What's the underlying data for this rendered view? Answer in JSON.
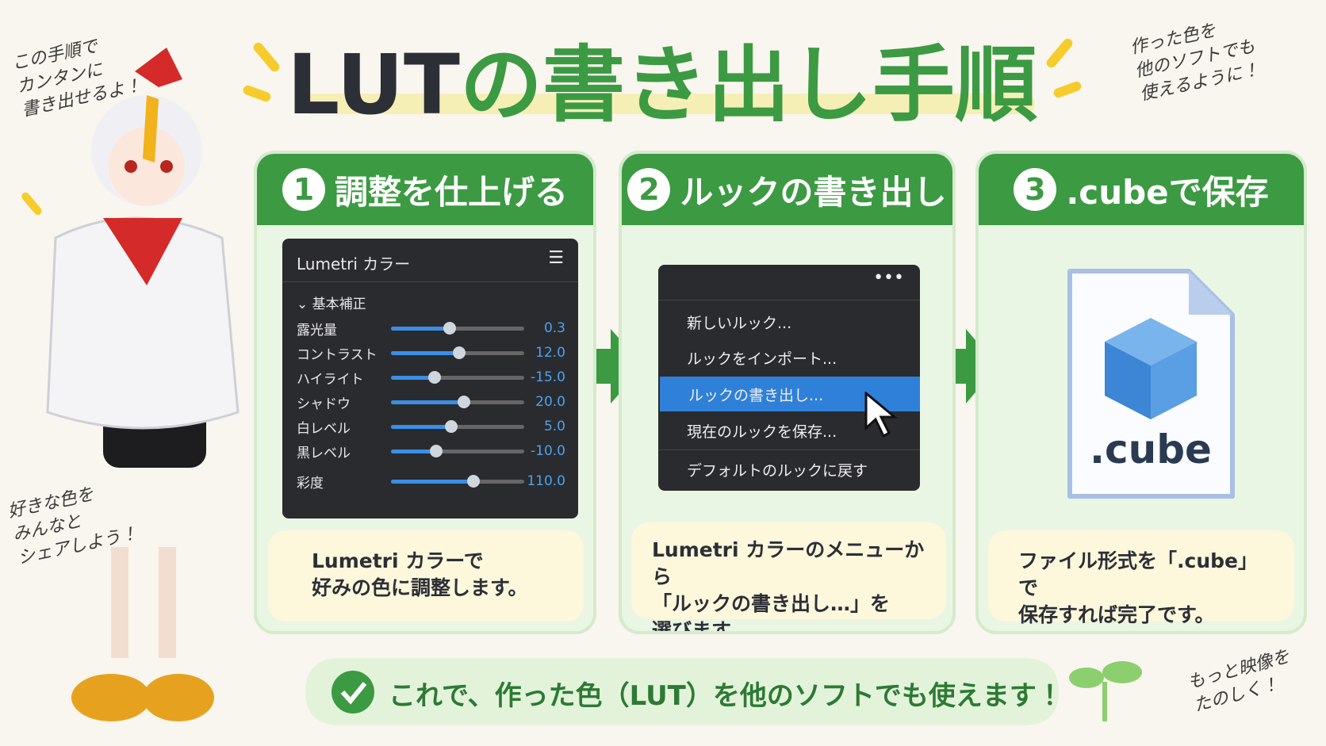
{
  "header": {
    "title_lead": "LUT",
    "title_rest": "の書き出し手順"
  },
  "notes": {
    "top_left": [
      "この手順で",
      "カンタンに",
      "書き出せるよ！"
    ],
    "top_right": [
      "作った色を",
      "他のソフトでも",
      "使えるように！"
    ],
    "bottom_left": [
      "好きな色を",
      "みんなと",
      "シェアしよう！"
    ],
    "bottom_right": [
      "もっと映像を",
      "たのしく！"
    ]
  },
  "steps": [
    {
      "number": "1",
      "title": "調整を仕上げる",
      "panel": {
        "title": "Lumetri カラー",
        "section": "基本補正",
        "rows": [
          {
            "label": "露光量",
            "value": "0.3"
          },
          {
            "label": "コントラスト",
            "value": "12.0"
          },
          {
            "label": "ハイライト",
            "value": "-15.0"
          },
          {
            "label": "シャドウ",
            "value": "20.0"
          },
          {
            "label": "白レベル",
            "value": "5.0"
          },
          {
            "label": "黒レベル",
            "value": "-10.0"
          },
          {
            "label": "彩度",
            "value": "110.0"
          }
        ]
      },
      "caption": [
        "Lumetri カラーで",
        "好みの色に調整します。"
      ]
    },
    {
      "number": "2",
      "title": "ルックの書き出し",
      "menu": [
        "新しいルック...",
        "ルックをインポート...",
        "ルックの書き出し...",
        "現在のルックを保存...",
        "デフォルトのルックに戻す"
      ],
      "caption": [
        "Lumetri カラーのメニューから",
        "「ルックの書き出し…」を",
        "選びます。"
      ]
    },
    {
      "number": "3",
      "title": ".cubeで保存",
      "file_label": ".cube",
      "caption": [
        "ファイル形式を「.cube」で",
        "保存すれば完了です。"
      ]
    }
  ],
  "footer": {
    "message": "これで、作った色（LUT）を他のソフトでも使えます！"
  }
}
